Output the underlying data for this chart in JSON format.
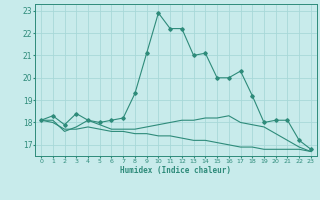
{
  "xlabel": "Humidex (Indice chaleur)",
  "x_values": [
    0,
    1,
    2,
    3,
    4,
    5,
    6,
    7,
    8,
    9,
    10,
    11,
    12,
    13,
    14,
    15,
    16,
    17,
    18,
    19,
    20,
    21,
    22,
    23
  ],
  "line1": [
    18.1,
    18.3,
    17.9,
    18.4,
    18.1,
    18.0,
    18.1,
    18.2,
    19.3,
    21.1,
    22.9,
    22.2,
    22.2,
    21.0,
    21.1,
    20.0,
    20.0,
    20.3,
    19.2,
    18.0,
    18.1,
    18.1,
    17.2,
    16.8
  ],
  "line2": [
    18.1,
    18.1,
    17.6,
    17.8,
    18.1,
    17.9,
    17.7,
    17.7,
    17.7,
    17.8,
    17.9,
    18.0,
    18.1,
    18.1,
    18.2,
    18.2,
    18.3,
    18.0,
    17.9,
    17.8,
    17.5,
    17.2,
    16.9,
    16.7
  ],
  "line3": [
    18.1,
    18.0,
    17.7,
    17.7,
    17.8,
    17.7,
    17.6,
    17.6,
    17.5,
    17.5,
    17.4,
    17.4,
    17.3,
    17.2,
    17.2,
    17.1,
    17.0,
    16.9,
    16.9,
    16.8,
    16.8,
    16.8,
    16.8,
    16.7
  ],
  "line_color": "#2e8b7a",
  "bg_color": "#c8ebeb",
  "grid_color": "#a8d8d8",
  "ylim": [
    16.5,
    23.3
  ],
  "yticks": [
    17,
    18,
    19,
    20,
    21,
    22,
    23
  ],
  "xlim": [
    -0.5,
    23.5
  ]
}
